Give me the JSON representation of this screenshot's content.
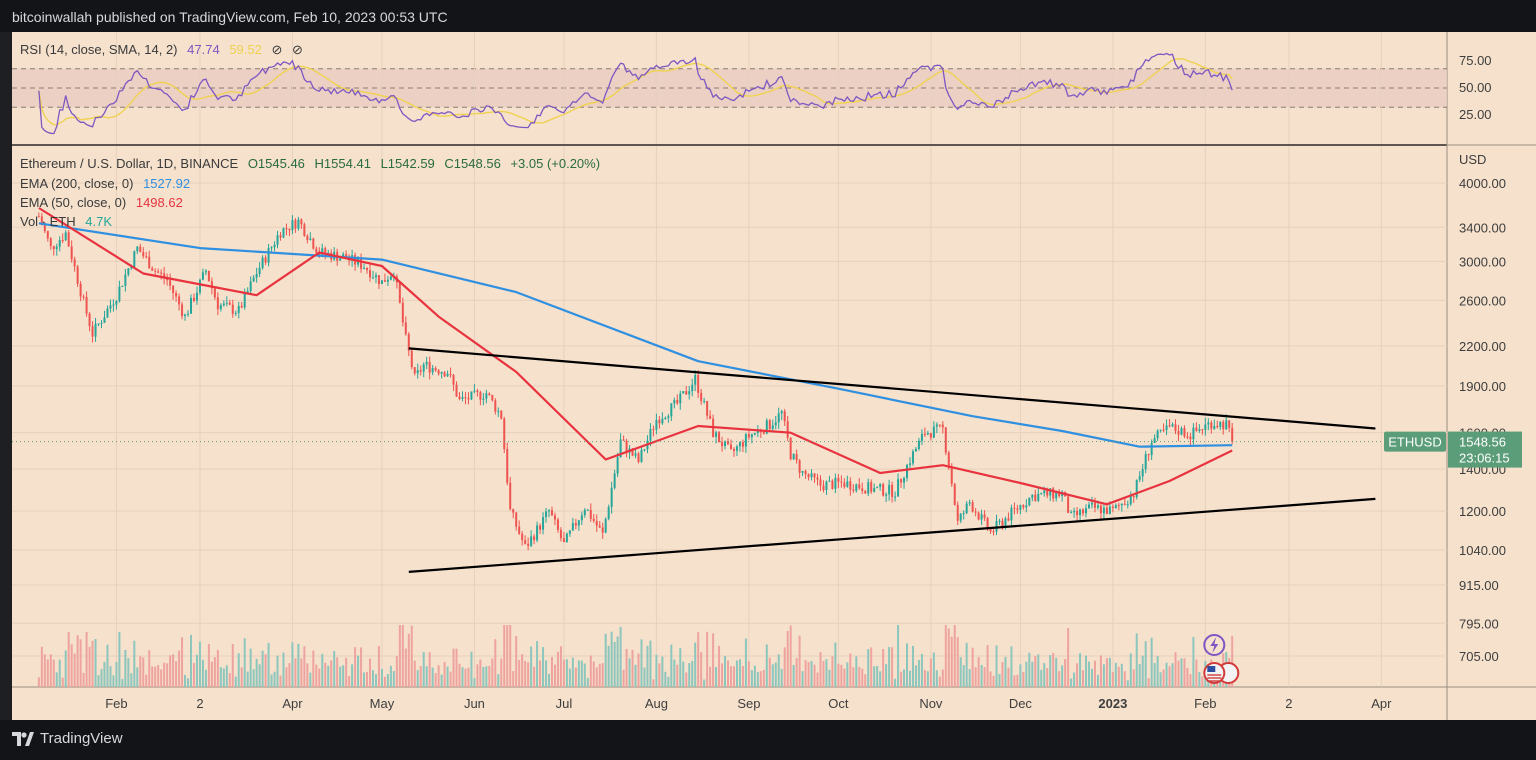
{
  "header": {
    "text": "bitcoinwallah published on TradingView.com, Feb 10, 2023 00:53 UTC"
  },
  "footer": {
    "brand": "TradingView"
  },
  "rsi_legend": {
    "name": "RSI (14, close, SMA, 14, 2)",
    "rsi": "47.74",
    "sma": "59.52",
    "icon1": "⊘",
    "icon2": "⊘"
  },
  "legend": {
    "symbol": "Ethereum / U.S. Dollar, 1D, BINANCE",
    "open": "O1545.46",
    "high": "H1554.41",
    "low": "L1542.59",
    "close": "C1548.56",
    "change": "+3.05 (+0.20%)",
    "ema200_label": "EMA (200, close, 0)",
    "ema200_value": "1527.92",
    "ema50_label": "EMA (50, close, 0)",
    "ema50_value": "1498.62",
    "vol_label": "Vol · ETH",
    "vol_value": "4.7K"
  },
  "price_tag": {
    "symbol": "ETHUSD",
    "price": "1548.56",
    "countdown": "23:06:15"
  },
  "colors": {
    "background": "#f5e1cc",
    "up": "#26a69a",
    "down": "#ef5350",
    "ema200": "#2f8fe0",
    "ema50": "#e8333f",
    "rsi": "#7e57c2",
    "rsi_sma": "#f0d250",
    "trendline": "#000000",
    "price_tag": "#5b9d78"
  },
  "chart_data": [
    {
      "type": "line",
      "name": "RSI",
      "ylim": [
        0,
        100
      ],
      "yticks": [
        "75.00",
        "50.00",
        "25.00"
      ],
      "band": [
        30,
        70
      ],
      "series": [
        {
          "name": "RSI (14, close, SMA, 14, 2)",
          "last": 47.74
        },
        {
          "name": "SMA",
          "last": 59.52
        }
      ]
    },
    {
      "type": "candlestick",
      "title": "Ethereum / U.S. Dollar, 1D, BINANCE",
      "ylabel": "USD",
      "scale": "log",
      "yticks": [
        "4000.00",
        "3400.00",
        "3000.00",
        "2600.00",
        "2200.00",
        "1900.00",
        "1600.00",
        "1400.00",
        "1200.00",
        "1040.00",
        "915.00",
        "795.00",
        "705.00"
      ],
      "xticks": [
        "Feb",
        "2",
        "Apr",
        "May",
        "Jun",
        "Jul",
        "Aug",
        "Sep",
        "Oct",
        "Nov",
        "Dec",
        "2023",
        "Feb",
        "2",
        "Apr"
      ],
      "ohlc_path": [
        [
          "2022-01-06",
          3540
        ],
        [
          "2022-01-10",
          3150
        ],
        [
          "2022-01-15",
          3330
        ],
        [
          "2022-01-21",
          2580
        ],
        [
          "2022-01-24",
          2300
        ],
        [
          "2022-02-01",
          2650
        ],
        [
          "2022-02-08",
          3150
        ],
        [
          "2022-02-14",
          2900
        ],
        [
          "2022-02-18",
          2800
        ],
        [
          "2022-02-24",
          2450
        ],
        [
          "2022-03-03",
          2900
        ],
        [
          "2022-03-07",
          2560
        ],
        [
          "2022-03-14",
          2500
        ],
        [
          "2022-03-20",
          2880
        ],
        [
          "2022-03-28",
          3350
        ],
        [
          "2022-04-03",
          3480
        ],
        [
          "2022-04-10",
          3100
        ],
        [
          "2022-04-18",
          3050
        ],
        [
          "2022-04-25",
          2950
        ],
        [
          "2022-05-01",
          2780
        ],
        [
          "2022-05-05",
          2900
        ],
        [
          "2022-05-09",
          2250
        ],
        [
          "2022-05-12",
          1950
        ],
        [
          "2022-05-15",
          2050
        ],
        [
          "2022-05-23",
          2000
        ],
        [
          "2022-05-27",
          1800
        ],
        [
          "2022-06-05",
          1850
        ],
        [
          "2022-06-10",
          1700
        ],
        [
          "2022-06-13",
          1200
        ],
        [
          "2022-06-18",
          1050
        ],
        [
          "2022-06-22",
          1120
        ],
        [
          "2022-06-26",
          1200
        ],
        [
          "2022-07-01",
          1060
        ],
        [
          "2022-07-08",
          1220
        ],
        [
          "2022-07-14",
          1100
        ],
        [
          "2022-07-20",
          1550
        ],
        [
          "2022-07-26",
          1440
        ],
        [
          "2022-08-01",
          1680
        ],
        [
          "2022-08-08",
          1780
        ],
        [
          "2022-08-14",
          1950
        ],
        [
          "2022-08-20",
          1600
        ],
        [
          "2022-08-26",
          1480
        ],
        [
          "2022-09-01",
          1580
        ],
        [
          "2022-09-08",
          1650
        ],
        [
          "2022-09-12",
          1720
        ],
        [
          "2022-09-15",
          1480
        ],
        [
          "2022-09-19",
          1380
        ],
        [
          "2022-09-25",
          1320
        ],
        [
          "2022-10-03",
          1330
        ],
        [
          "2022-10-13",
          1300
        ],
        [
          "2022-10-20",
          1290
        ],
        [
          "2022-10-25",
          1450
        ],
        [
          "2022-10-30",
          1600
        ],
        [
          "2022-11-05",
          1620
        ],
        [
          "2022-11-08",
          1330
        ],
        [
          "2022-11-10",
          1150
        ],
        [
          "2022-11-14",
          1240
        ],
        [
          "2022-11-21",
          1110
        ],
        [
          "2022-11-28",
          1190
        ],
        [
          "2022-12-05",
          1270
        ],
        [
          "2022-12-15",
          1280
        ],
        [
          "2022-12-18",
          1170
        ],
        [
          "2022-12-25",
          1215
        ],
        [
          "2023-01-01",
          1200
        ],
        [
          "2023-01-08",
          1280
        ],
        [
          "2023-01-14",
          1550
        ],
        [
          "2023-01-20",
          1630
        ],
        [
          "2023-01-27",
          1590
        ],
        [
          "2023-02-03",
          1660
        ],
        [
          "2023-02-08",
          1650
        ],
        [
          "2023-02-10",
          1548.56
        ]
      ],
      "series": [
        {
          "name": "EMA (200, close, 0)",
          "last": 1527.92,
          "path": [
            [
              "2022-01-06",
              3450
            ],
            [
              "2022-03-01",
              3150
            ],
            [
              "2022-05-01",
              3020
            ],
            [
              "2022-06-15",
              2680
            ],
            [
              "2022-08-15",
              2080
            ],
            [
              "2022-10-01",
              1880
            ],
            [
              "2022-11-15",
              1700
            ],
            [
              "2022-12-15",
              1610
            ],
            [
              "2023-01-10",
              1520
            ],
            [
              "2023-02-10",
              1527.92
            ]
          ]
        },
        {
          "name": "EMA (50, close, 0)",
          "last": 1498.62,
          "path": [
            [
              "2022-01-06",
              3650
            ],
            [
              "2022-02-10",
              2870
            ],
            [
              "2022-03-20",
              2650
            ],
            [
              "2022-04-10",
              3100
            ],
            [
              "2022-05-01",
              2950
            ],
            [
              "2022-05-20",
              2450
            ],
            [
              "2022-06-15",
              2000
            ],
            [
              "2022-07-15",
              1450
            ],
            [
              "2022-08-15",
              1640
            ],
            [
              "2022-09-15",
              1600
            ],
            [
              "2022-10-15",
              1380
            ],
            [
              "2022-11-05",
              1420
            ],
            [
              "2022-12-01",
              1330
            ],
            [
              "2022-12-30",
              1230
            ],
            [
              "2023-01-20",
              1340
            ],
            [
              "2023-02-10",
              1498.62
            ]
          ]
        },
        {
          "name": "trendline-upper",
          "path": [
            [
              "2022-05-10",
              2180
            ],
            [
              "2023-03-30",
              1625
            ]
          ]
        },
        {
          "name": "trendline-lower",
          "path": [
            [
              "2022-05-10",
              960
            ],
            [
              "2023-03-30",
              1255
            ]
          ]
        }
      ],
      "last_price": 1548.56,
      "volume": {
        "name": "Vol · ETH",
        "last": "4.7K"
      }
    }
  ]
}
